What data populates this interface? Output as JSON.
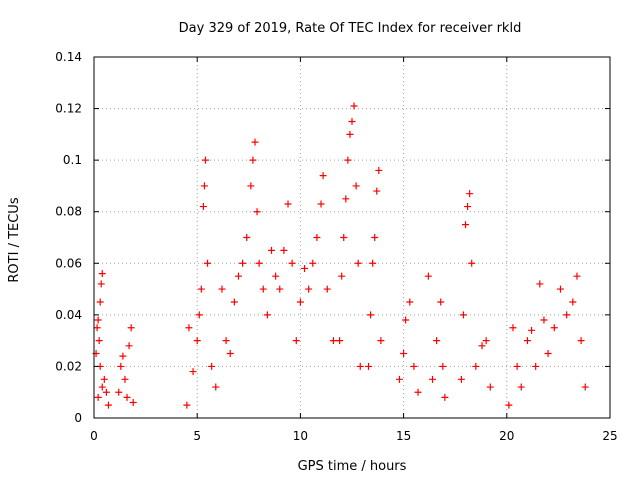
{
  "chart_data": {
    "type": "scatter",
    "title": "Day 329 of 2019, Rate Of TEC Index for receiver rkld",
    "xlabel": "GPS time / hours",
    "ylabel": "ROTI / TECUs",
    "xlim": [
      0,
      25
    ],
    "ylim": [
      0,
      0.14
    ],
    "x_ticks": [
      0,
      5,
      10,
      15,
      20,
      25
    ],
    "x_tick_labels": [
      "0",
      "5",
      "10",
      "15",
      "20",
      "25"
    ],
    "y_ticks": [
      0,
      0.02,
      0.04,
      0.06,
      0.08,
      0.1,
      0.12,
      0.14
    ],
    "y_tick_labels": [
      "0",
      "0.02",
      "0.04",
      "0.06",
      "0.08",
      "0.1",
      "0.12",
      "0.14"
    ],
    "grid": true,
    "marker": "plus",
    "color": "#ff0000",
    "series": [
      {
        "points": [
          [
            0.1,
            0.025
          ],
          [
            0.15,
            0.035
          ],
          [
            0.2,
            0.038
          ],
          [
            0.25,
            0.03
          ],
          [
            0.3,
            0.045
          ],
          [
            0.35,
            0.052
          ],
          [
            0.4,
            0.056
          ],
          [
            0.3,
            0.02
          ],
          [
            0.2,
            0.008
          ],
          [
            0.4,
            0.012
          ],
          [
            0.5,
            0.015
          ],
          [
            0.6,
            0.01
          ],
          [
            0.7,
            0.005
          ],
          [
            1.2,
            0.01
          ],
          [
            1.3,
            0.02
          ],
          [
            1.4,
            0.024
          ],
          [
            1.5,
            0.015
          ],
          [
            1.6,
            0.008
          ],
          [
            1.7,
            0.028
          ],
          [
            1.8,
            0.035
          ],
          [
            1.9,
            0.006
          ],
          [
            4.5,
            0.005
          ],
          [
            4.6,
            0.035
          ],
          [
            4.8,
            0.018
          ],
          [
            5.0,
            0.03
          ],
          [
            5.1,
            0.04
          ],
          [
            5.2,
            0.05
          ],
          [
            5.3,
            0.082
          ],
          [
            5.35,
            0.09
          ],
          [
            5.4,
            0.1
          ],
          [
            5.5,
            0.06
          ],
          [
            5.7,
            0.02
          ],
          [
            5.9,
            0.012
          ],
          [
            6.2,
            0.05
          ],
          [
            6.4,
            0.03
          ],
          [
            6.6,
            0.025
          ],
          [
            6.8,
            0.045
          ],
          [
            7.0,
            0.055
          ],
          [
            7.2,
            0.06
          ],
          [
            7.4,
            0.07
          ],
          [
            7.6,
            0.09
          ],
          [
            7.7,
            0.1
          ],
          [
            7.8,
            0.107
          ],
          [
            7.9,
            0.08
          ],
          [
            8.0,
            0.06
          ],
          [
            8.2,
            0.05
          ],
          [
            8.4,
            0.04
          ],
          [
            8.6,
            0.065
          ],
          [
            8.8,
            0.055
          ],
          [
            9.0,
            0.05
          ],
          [
            9.2,
            0.065
          ],
          [
            9.4,
            0.083
          ],
          [
            9.6,
            0.06
          ],
          [
            9.8,
            0.03
          ],
          [
            10.0,
            0.045
          ],
          [
            10.2,
            0.058
          ],
          [
            10.4,
            0.05
          ],
          [
            10.6,
            0.06
          ],
          [
            10.8,
            0.07
          ],
          [
            11.0,
            0.083
          ],
          [
            11.1,
            0.094
          ],
          [
            11.3,
            0.05
          ],
          [
            11.6,
            0.03
          ],
          [
            11.9,
            0.03
          ],
          [
            12.0,
            0.055
          ],
          [
            12.1,
            0.07
          ],
          [
            12.2,
            0.085
          ],
          [
            12.3,
            0.1
          ],
          [
            12.4,
            0.11
          ],
          [
            12.5,
            0.115
          ],
          [
            12.6,
            0.121
          ],
          [
            12.7,
            0.09
          ],
          [
            12.8,
            0.06
          ],
          [
            12.9,
            0.02
          ],
          [
            13.3,
            0.02
          ],
          [
            13.4,
            0.04
          ],
          [
            13.5,
            0.06
          ],
          [
            13.6,
            0.07
          ],
          [
            13.7,
            0.088
          ],
          [
            13.8,
            0.096
          ],
          [
            13.9,
            0.03
          ],
          [
            14.8,
            0.015
          ],
          [
            15.0,
            0.025
          ],
          [
            15.1,
            0.038
          ],
          [
            15.3,
            0.045
          ],
          [
            15.5,
            0.02
          ],
          [
            15.7,
            0.01
          ],
          [
            16.2,
            0.055
          ],
          [
            16.4,
            0.015
          ],
          [
            16.6,
            0.03
          ],
          [
            16.8,
            0.045
          ],
          [
            16.9,
            0.02
          ],
          [
            17.0,
            0.008
          ],
          [
            17.8,
            0.015
          ],
          [
            17.9,
            0.04
          ],
          [
            18.0,
            0.075
          ],
          [
            18.1,
            0.082
          ],
          [
            18.2,
            0.087
          ],
          [
            18.3,
            0.06
          ],
          [
            18.5,
            0.02
          ],
          [
            18.8,
            0.028
          ],
          [
            19.0,
            0.03
          ],
          [
            19.2,
            0.012
          ],
          [
            20.1,
            0.005
          ],
          [
            20.3,
            0.035
          ],
          [
            20.5,
            0.02
          ],
          [
            20.7,
            0.012
          ],
          [
            21.0,
            0.03
          ],
          [
            21.2,
            0.034
          ],
          [
            21.4,
            0.02
          ],
          [
            21.6,
            0.052
          ],
          [
            21.8,
            0.038
          ],
          [
            22.0,
            0.025
          ],
          [
            22.3,
            0.035
          ],
          [
            22.6,
            0.05
          ],
          [
            22.9,
            0.04
          ],
          [
            23.2,
            0.045
          ],
          [
            23.4,
            0.055
          ],
          [
            23.6,
            0.03
          ],
          [
            23.8,
            0.012
          ]
        ]
      }
    ]
  }
}
